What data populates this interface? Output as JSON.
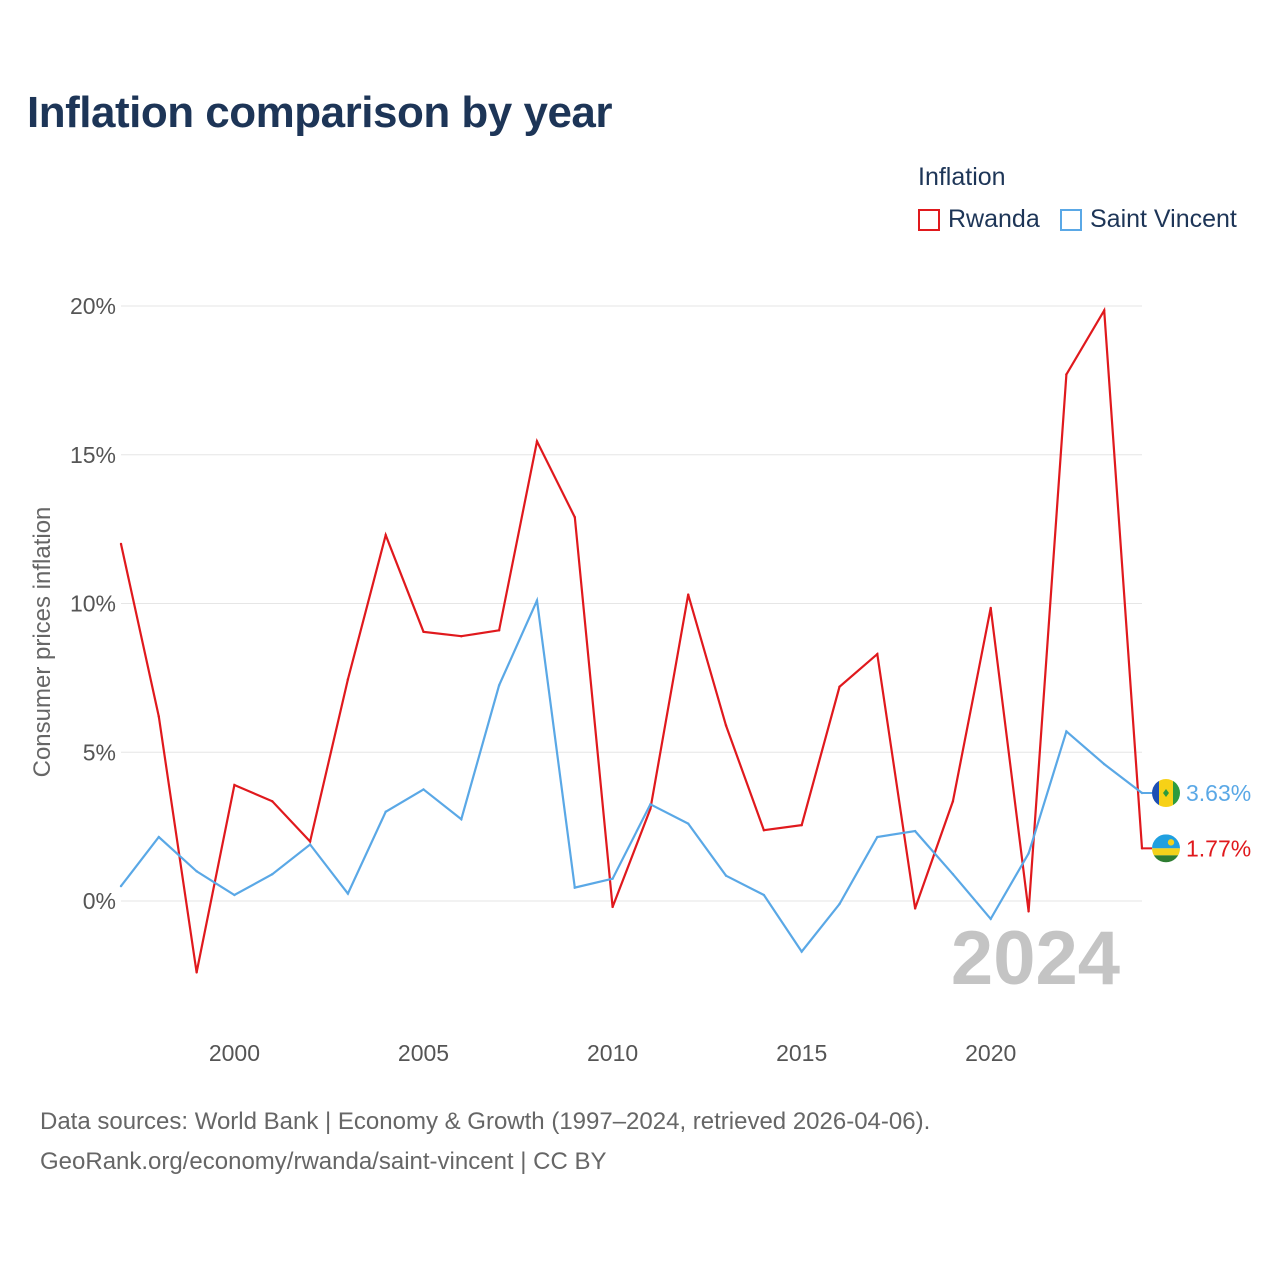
{
  "title": "Inflation comparison by year",
  "legend": {
    "title": "Inflation",
    "items": [
      {
        "label": "Rwanda",
        "color": "#e0191d"
      },
      {
        "label": "Saint Vincent",
        "color": "#5aa8e6"
      }
    ]
  },
  "source": {
    "line1": "Data sources: World Bank | Economy & Growth (1997–2024, retrieved 2026-04-06).",
    "line2": "GeoRank.org/economy/rwanda/saint-vincent | CC BY"
  },
  "chart_data": {
    "type": "line",
    "ylabel": "Consumer prices inflation",
    "xlabel": "",
    "xlim": [
      1997,
      2024
    ],
    "ylim": [
      -4,
      20
    ],
    "x_ticks": [
      2000,
      2005,
      2010,
      2015,
      2020
    ],
    "y_ticks": [
      {
        "value": 0,
        "label": "0%"
      },
      {
        "value": 5,
        "label": "5%"
      },
      {
        "value": 10,
        "label": "10%"
      },
      {
        "value": 15,
        "label": "15%"
      },
      {
        "value": 20,
        "label": "20%"
      }
    ],
    "year_watermark": "2024",
    "x": [
      1997,
      1998,
      1999,
      2000,
      2001,
      2002,
      2003,
      2004,
      2005,
      2006,
      2007,
      2008,
      2009,
      2010,
      2011,
      2012,
      2013,
      2014,
      2015,
      2016,
      2017,
      2018,
      2019,
      2020,
      2021,
      2022,
      2023,
      2024
    ],
    "series": [
      {
        "name": "Rwanda",
        "color": "#e0191d",
        "end_label": "1.77%",
        "flag": "rwanda-flag",
        "values": [
          12.0,
          6.2,
          -2.4,
          3.9,
          3.35,
          2.0,
          7.45,
          12.3,
          9.05,
          8.9,
          9.1,
          15.45,
          12.9,
          -0.2,
          3.1,
          10.3,
          5.9,
          2.38,
          2.55,
          7.2,
          8.3,
          -0.25,
          3.35,
          9.85,
          -0.35,
          17.7,
          19.85,
          1.77
        ]
      },
      {
        "name": "Saint Vincent",
        "color": "#5aa8e6",
        "end_label": "3.63%",
        "flag": "saint-vincent-flag",
        "values": [
          0.5,
          2.15,
          1.0,
          0.2,
          0.9,
          1.9,
          0.25,
          3.0,
          3.75,
          2.75,
          7.25,
          10.1,
          0.45,
          0.75,
          3.25,
          2.6,
          0.85,
          0.2,
          -1.7,
          -0.1,
          2.15,
          2.35,
          0.9,
          -0.6,
          1.6,
          5.7,
          4.6,
          3.63
        ]
      }
    ]
  }
}
